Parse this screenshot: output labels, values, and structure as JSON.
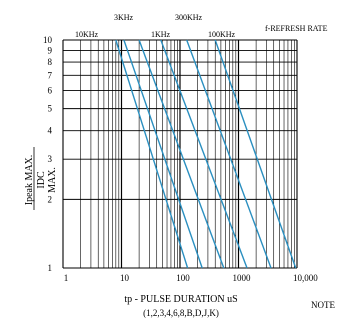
{
  "chart_data": {
    "type": "line",
    "x_scale": "log",
    "y_scale": "log",
    "xlim": [
      1,
      10000
    ],
    "ylim": [
      1,
      10
    ],
    "x_ticks": [
      {
        "value": 1,
        "label": "1"
      },
      {
        "value": 10,
        "label": "10"
      },
      {
        "value": 100,
        "label": "100"
      },
      {
        "value": 1000,
        "label": "1000"
      },
      {
        "value": 10000,
        "label": "10,000"
      }
    ],
    "y_ticks": [
      {
        "value": 1,
        "label": "1"
      },
      {
        "value": 2,
        "label": "2"
      },
      {
        "value": 3,
        "label": "3"
      },
      {
        "value": 4,
        "label": "4"
      },
      {
        "value": 5,
        "label": "5"
      },
      {
        "value": 6,
        "label": "6"
      },
      {
        "value": 7,
        "label": "7"
      },
      {
        "value": 8,
        "label": "8"
      },
      {
        "value": 9,
        "label": "9"
      },
      {
        "value": 10,
        "label": "10"
      }
    ],
    "xlabel": "tp - PULSE DURATION uS",
    "xlabel_sub": "(1,2,3,4,6,8,B,D,J,K)",
    "ylabel_num": "Ipeak MAX.",
    "ylabel_den": "IDC",
    "ylabel_max": "MAX.",
    "grid": true,
    "line_color": "#2a8fc0",
    "grid_color": "#000000",
    "series": [
      {
        "label": "10KHz",
        "points": [
          [
            8,
            10
          ],
          [
            135,
            1
          ]
        ]
      },
      {
        "label": "3KHz",
        "points": [
          [
            11,
            10
          ],
          [
            240,
            1
          ]
        ]
      },
      {
        "label": "1KHz",
        "points": [
          [
            20,
            10
          ],
          [
            560,
            1
          ]
        ]
      },
      {
        "label": "300KHz",
        "points": [
          [
            47,
            10
          ],
          [
            1400,
            1
          ]
        ]
      },
      {
        "label": "100KHz",
        "points": [
          [
            130,
            10
          ],
          [
            3600,
            1
          ]
        ]
      },
      {
        "label": "",
        "points": [
          [
            400,
            10
          ],
          [
            9500,
            1
          ]
        ]
      }
    ],
    "annotations": {
      "refresh_rate": "f-REFRESH RATE",
      "note": "NOTE"
    }
  }
}
